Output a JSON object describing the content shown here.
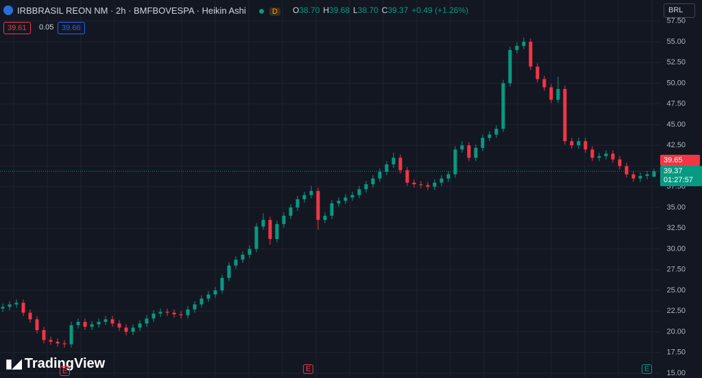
{
  "header": {
    "title": "IRBBRASIL REON NM · 2h · BMFBOVESPA · Heikin Ashi",
    "badge": "D",
    "ohlc": [
      {
        "label": "O",
        "value": "38.70"
      },
      {
        "label": "H",
        "value": "39.68"
      },
      {
        "label": "L",
        "value": "38.70"
      },
      {
        "label": "C",
        "value": "39.37"
      }
    ],
    "change": "+0.49 (+1.26%)"
  },
  "buttons": [
    "39.61",
    "0.05",
    "39.66"
  ],
  "currency": "BRL",
  "price_labels": {
    "ask": "39.65",
    "last": "39.37",
    "countdown": "01:27:57"
  },
  "brand": "TradingView",
  "event_marks": [
    "E",
    "E",
    "E"
  ],
  "chart_data": {
    "type": "candlestick",
    "up_color": "#089981",
    "down_color": "#f23645",
    "grid": true,
    "ylim": [
      14.42,
      60.04
    ],
    "yticks": [
      {
        "value": 15,
        "label": "15.00"
      },
      {
        "value": 17.5,
        "label": "17.50"
      },
      {
        "value": 20,
        "label": "20.00"
      },
      {
        "value": 22.5,
        "label": "22.50"
      },
      {
        "value": 25,
        "label": "25.00"
      },
      {
        "value": 27.5,
        "label": "27.50"
      },
      {
        "value": 30,
        "label": "30.00"
      },
      {
        "value": 32.5,
        "label": "32.50"
      },
      {
        "value": 35,
        "label": "35.00"
      },
      {
        "value": 37.5,
        "label": "37.50"
      },
      {
        "value": 40,
        "label": "40.00"
      },
      {
        "value": 42.5,
        "label": "42.50"
      },
      {
        "value": 45,
        "label": "45.00"
      },
      {
        "value": 47.5,
        "label": "47.50"
      },
      {
        "value": 50,
        "label": "50.00"
      },
      {
        "value": 52.5,
        "label": "52.50"
      },
      {
        "value": 55,
        "label": "55.00"
      },
      {
        "value": 57.5,
        "label": "57.50"
      }
    ],
    "open": [
      22.8,
      23.0,
      23.3,
      23.5,
      22.3,
      21.5,
      20.2,
      19.0,
      18.8,
      18.6,
      18.5,
      20.8,
      21.2,
      20.6,
      20.9,
      21.2,
      21.5,
      21.0,
      20.5,
      20.0,
      20.5,
      21.0,
      21.6,
      22.2,
      22.4,
      22.3,
      22.1,
      22.0,
      22.7,
      23.3,
      24.0,
      24.5,
      25.0,
      26.5,
      28.0,
      28.7,
      29.3,
      30.0,
      32.7,
      33.5,
      31.2,
      33.0,
      34.0,
      35.0,
      36.0,
      36.5,
      37.0,
      33.5,
      34.0,
      35.5,
      35.8,
      36.2,
      36.5,
      37.2,
      37.8,
      38.5,
      39.3,
      40.2,
      41.0,
      39.5,
      38.0,
      37.8,
      37.7,
      37.5,
      38.0,
      38.5,
      39.0,
      42.0,
      42.5,
      41.0,
      42.2,
      43.4,
      43.8,
      44.5,
      50.0,
      54.0,
      54.5,
      55.0,
      52.0,
      50.5,
      49.5,
      48.0,
      49.3,
      43.0,
      42.5,
      43.0,
      42.0,
      41.0,
      41.2,
      41.5,
      40.8,
      40.0,
      39.0,
      38.5,
      38.8,
      38.7
    ],
    "high": [
      23.4,
      23.7,
      23.9,
      23.9,
      22.7,
      21.9,
      20.6,
      19.4,
      19.2,
      19.0,
      21.2,
      21.6,
      21.6,
      21.3,
      21.6,
      21.9,
      21.9,
      21.4,
      20.9,
      20.9,
      21.4,
      22.0,
      22.6,
      22.8,
      22.8,
      22.7,
      22.5,
      23.1,
      23.7,
      24.4,
      24.9,
      25.4,
      26.9,
      28.4,
      29.1,
      29.7,
      30.4,
      33.1,
      34.3,
      33.9,
      33.4,
      34.4,
      35.4,
      36.4,
      36.9,
      37.6,
      37.4,
      34.4,
      35.9,
      36.2,
      36.6,
      36.9,
      37.6,
      38.2,
      38.9,
      39.7,
      40.6,
      41.6,
      41.4,
      39.9,
      38.4,
      38.2,
      38.1,
      38.4,
      38.9,
      39.4,
      42.4,
      43.0,
      42.9,
      42.6,
      43.8,
      44.2,
      44.9,
      50.4,
      54.4,
      54.9,
      55.5,
      55.4,
      52.4,
      50.9,
      49.9,
      50.8,
      49.7,
      43.4,
      43.4,
      43.4,
      42.4,
      41.6,
      41.9,
      41.9,
      41.2,
      40.4,
      39.4,
      39.2,
      39.4,
      39.68
    ],
    "low": [
      22.4,
      22.6,
      22.9,
      21.9,
      21.1,
      19.8,
      18.6,
      18.4,
      18.2,
      18.1,
      18.1,
      20.4,
      20.2,
      20.2,
      20.5,
      20.8,
      20.6,
      20.1,
      19.6,
      19.6,
      20.1,
      20.6,
      21.2,
      21.8,
      21.9,
      21.7,
      21.6,
      21.6,
      22.3,
      22.9,
      23.6,
      24.1,
      24.6,
      26.1,
      27.6,
      28.3,
      28.9,
      29.6,
      32.3,
      30.5,
      30.8,
      32.6,
      33.6,
      34.6,
      35.6,
      36.1,
      32.3,
      33.1,
      33.6,
      35.1,
      35.4,
      35.8,
      36.1,
      36.8,
      37.4,
      38.1,
      38.9,
      39.8,
      39.1,
      37.6,
      37.4,
      37.3,
      37.1,
      37.1,
      37.6,
      38.1,
      38.6,
      41.6,
      40.6,
      40.6,
      41.8,
      43.0,
      43.4,
      44.1,
      49.6,
      53.6,
      54.1,
      51.6,
      50.1,
      49.1,
      47.6,
      47.6,
      42.6,
      42.1,
      42.1,
      41.6,
      40.6,
      40.6,
      40.8,
      40.4,
      39.6,
      38.6,
      38.1,
      38.1,
      38.4,
      38.7
    ],
    "close": [
      23.0,
      23.3,
      23.5,
      22.3,
      21.5,
      20.2,
      19.0,
      18.8,
      18.6,
      18.5,
      20.8,
      21.2,
      20.6,
      20.9,
      21.2,
      21.5,
      21.0,
      20.5,
      20.0,
      20.5,
      21.0,
      21.6,
      22.2,
      22.4,
      22.3,
      22.1,
      22.0,
      22.7,
      23.3,
      24.0,
      24.5,
      25.0,
      26.5,
      28.0,
      28.7,
      29.3,
      30.0,
      32.7,
      33.5,
      31.2,
      33.0,
      34.0,
      35.0,
      36.0,
      36.5,
      37.0,
      33.5,
      34.0,
      35.5,
      35.8,
      36.2,
      36.5,
      37.2,
      37.8,
      38.5,
      39.3,
      40.2,
      41.0,
      39.5,
      38.0,
      37.8,
      37.7,
      37.5,
      38.0,
      38.5,
      39.0,
      42.0,
      42.5,
      41.0,
      42.2,
      43.4,
      43.8,
      44.5,
      50.0,
      54.0,
      54.5,
      55.0,
      52.0,
      50.5,
      49.5,
      48.0,
      49.3,
      43.0,
      42.5,
      43.0,
      42.0,
      41.0,
      41.2,
      41.5,
      40.8,
      40.0,
      39.0,
      38.5,
      38.8,
      39.0,
      39.37
    ]
  }
}
